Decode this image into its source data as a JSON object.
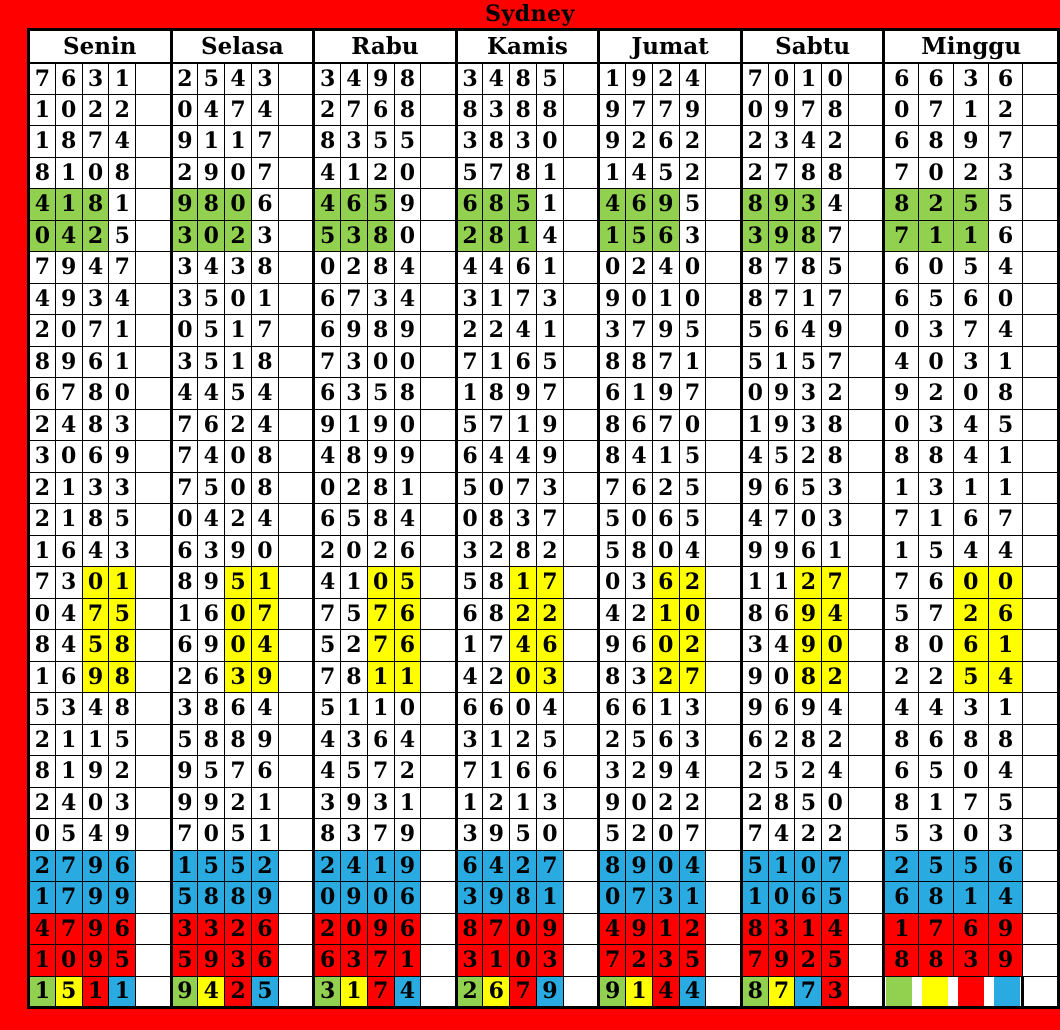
{
  "title": "Sydney",
  "columns": [
    "Senin",
    "Selasa",
    "Rabu",
    "Kamis",
    "Jumat",
    "Sabtu",
    "Minggu"
  ],
  "colors": {
    "red": "#FE0000",
    "green": "#92D050",
    "yellow": "#FFFF00",
    "blue": "#29ABE2",
    "table_bg": "#FFFFFF",
    "border": "#000000",
    "text": "#000000"
  },
  "highlight_legend_names": [
    "green",
    "yellow",
    "red",
    "blue"
  ],
  "rows": [
    {
      "style": "plain",
      "values": [
        "7631",
        "2543",
        "3498",
        "3485",
        "1924",
        "7010",
        "6636"
      ]
    },
    {
      "style": "plain",
      "values": [
        "1022",
        "0474",
        "2768",
        "8388",
        "9779",
        "0978",
        "0712"
      ]
    },
    {
      "style": "plain",
      "values": [
        "1874",
        "9117",
        "8355",
        "3830",
        "9262",
        "2342",
        "6897"
      ]
    },
    {
      "style": "plain",
      "values": [
        "8108",
        "2907",
        "4120",
        "5781",
        "1452",
        "2788",
        "7023"
      ]
    },
    {
      "style": "green-first3",
      "values": [
        "4181",
        "9806",
        "4659",
        "6851",
        "4695",
        "8934",
        "8255"
      ]
    },
    {
      "style": "green-first3",
      "values": [
        "0425",
        "3023",
        "5380",
        "2814",
        "1563",
        "3987",
        "7116"
      ]
    },
    {
      "style": "plain",
      "values": [
        "7947",
        "3438",
        "0284",
        "4461",
        "0240",
        "8785",
        "6054"
      ]
    },
    {
      "style": "plain",
      "values": [
        "4934",
        "3501",
        "6734",
        "3173",
        "9010",
        "8717",
        "6560"
      ]
    },
    {
      "style": "plain",
      "values": [
        "2071",
        "0517",
        "6989",
        "2241",
        "3795",
        "5649",
        "0374"
      ]
    },
    {
      "style": "plain",
      "values": [
        "8961",
        "3518",
        "7300",
        "7165",
        "8871",
        "5157",
        "4031"
      ]
    },
    {
      "style": "plain",
      "values": [
        "6780",
        "4454",
        "6358",
        "1897",
        "6197",
        "0932",
        "9208"
      ]
    },
    {
      "style": "plain",
      "values": [
        "2483",
        "7624",
        "9190",
        "5719",
        "8670",
        "1938",
        "0345"
      ]
    },
    {
      "style": "plain",
      "values": [
        "3069",
        "7408",
        "4899",
        "6449",
        "8415",
        "4528",
        "8841"
      ]
    },
    {
      "style": "plain",
      "values": [
        "2133",
        "7508",
        "0281",
        "5073",
        "7625",
        "9653",
        "1311"
      ]
    },
    {
      "style": "plain",
      "values": [
        "2185",
        "0424",
        "6584",
        "0837",
        "5065",
        "4703",
        "7167"
      ]
    },
    {
      "style": "plain",
      "values": [
        "1643",
        "6390",
        "2026",
        "3282",
        "5804",
        "9961",
        "1544"
      ]
    },
    {
      "style": "yellow-last2",
      "values": [
        "7301",
        "8951",
        "4105",
        "5817",
        "0362",
        "1127",
        "7600"
      ]
    },
    {
      "style": "yellow-last2",
      "values": [
        "0475",
        "1607",
        "7576",
        "6822",
        "4210",
        "8694",
        "5726"
      ]
    },
    {
      "style": "yellow-last2",
      "values": [
        "8458",
        "6904",
        "5276",
        "1746",
        "9602",
        "3490",
        "8061"
      ]
    },
    {
      "style": "yellow-last2",
      "values": [
        "1698",
        "2639",
        "7811",
        "4203",
        "8327",
        "9082",
        "2254"
      ]
    },
    {
      "style": "plain",
      "values": [
        "5348",
        "3864",
        "5110",
        "6604",
        "6613",
        "9694",
        "4431"
      ]
    },
    {
      "style": "plain",
      "values": [
        "2115",
        "5889",
        "4364",
        "3125",
        "2563",
        "6282",
        "8688"
      ]
    },
    {
      "style": "plain",
      "values": [
        "8192",
        "9576",
        "4572",
        "7166",
        "3294",
        "2524",
        "6504"
      ]
    },
    {
      "style": "plain",
      "values": [
        "2403",
        "9921",
        "3931",
        "1213",
        "9022",
        "2850",
        "8175"
      ]
    },
    {
      "style": "plain",
      "values": [
        "0549",
        "7051",
        "8379",
        "3950",
        "5207",
        "7422",
        "5303"
      ]
    },
    {
      "style": "blue-all",
      "values": [
        "2796",
        "1552",
        "2419",
        "6427",
        "8904",
        "5107",
        "2556"
      ]
    },
    {
      "style": "blue-all",
      "values": [
        "1799",
        "5889",
        "0906",
        "3981",
        "0731",
        "1065",
        "6814"
      ]
    },
    {
      "style": "red-all",
      "values": [
        "4796",
        "3326",
        "2096",
        "8709",
        "4912",
        "8314",
        "1769"
      ]
    },
    {
      "style": "red-all",
      "values": [
        "1095",
        "5936",
        "6371",
        "3103",
        "7235",
        "7925",
        "8839"
      ]
    }
  ],
  "bottom_row": {
    "groups": [
      {
        "value": "1511",
        "digit_colors": [
          "green",
          "yellow",
          "red",
          "blue"
        ]
      },
      {
        "value": "9425",
        "digit_colors": [
          "green",
          "yellow",
          "red",
          "blue"
        ]
      },
      {
        "value": "3174",
        "digit_colors": [
          "green",
          "yellow",
          "red",
          "blue"
        ]
      },
      {
        "value": "2679",
        "digit_colors": [
          "green",
          "yellow",
          "red",
          "blue"
        ]
      },
      {
        "value": "9144",
        "digit_colors": [
          "green",
          "yellow",
          "red",
          "blue"
        ]
      },
      {
        "value": "8773",
        "digit_colors": [
          "green",
          "yellow",
          "blue",
          "red"
        ]
      },
      {
        "value": "",
        "legend": [
          "green",
          "yellow",
          "red",
          "blue"
        ]
      }
    ]
  }
}
